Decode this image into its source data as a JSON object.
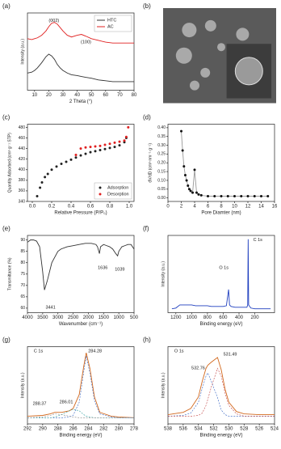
{
  "chart_data": [
    {
      "type": "line",
      "panel": "(a)",
      "xlabel": "2 Theta (°)",
      "ylabel": "Intensity (a.u.)",
      "x": [
        5,
        8,
        10,
        12,
        15,
        18,
        20,
        22,
        24,
        26,
        28,
        30,
        33,
        36,
        40,
        43,
        46,
        50,
        55,
        60,
        65,
        70,
        75,
        80
      ],
      "series": [
        {
          "name": "HTC",
          "color": "#333333",
          "values": [
            3.0,
            3.1,
            3.3,
            3.6,
            4.2,
            4.9,
            5.2,
            5.0,
            4.6,
            4.0,
            3.6,
            3.3,
            3.0,
            2.8,
            2.7,
            2.6,
            2.5,
            2.4,
            2.2,
            2.1,
            2.0,
            2.0,
            2.0,
            2.0
          ]
        },
        {
          "name": "AC",
          "color": "#e02020",
          "values": [
            7.0,
            6.9,
            7.0,
            7.1,
            7.4,
            7.9,
            8.4,
            8.8,
            8.9,
            8.7,
            8.3,
            7.9,
            7.4,
            7.2,
            7.4,
            7.5,
            7.3,
            7.0,
            6.8,
            6.6,
            6.5,
            6.5,
            6.5,
            6.5
          ]
        }
      ],
      "annotations": [
        "(002)",
        "(100)"
      ],
      "xlim": [
        5,
        80
      ],
      "xticks": [
        10,
        20,
        30,
        40,
        50,
        60,
        70,
        80
      ],
      "ylim": [
        1,
        10
      ],
      "legend": "upper right"
    },
    {
      "type": "image",
      "panel": "(b)"
    },
    {
      "type": "scatter",
      "panel": "(c)",
      "xlabel": "Relative Pressure (P/P₀)",
      "ylabel": "Quantity Adsorbed (cm³·g⁻¹ STP)",
      "series": [
        {
          "name": "Adsorption",
          "color": "#222222",
          "x": [
            0.05,
            0.08,
            0.1,
            0.13,
            0.16,
            0.2,
            0.25,
            0.3,
            0.35,
            0.4,
            0.45,
            0.5,
            0.55,
            0.6,
            0.65,
            0.7,
            0.75,
            0.8,
            0.85,
            0.9,
            0.95,
            0.97
          ],
          "values": [
            350,
            366,
            376,
            386,
            392,
            400,
            406,
            411,
            415,
            419,
            423,
            427,
            430,
            433,
            435,
            437,
            439,
            441,
            443,
            446,
            452,
            460
          ]
        },
        {
          "name": "Desorption",
          "color": "#e02020",
          "x": [
            0.99,
            0.97,
            0.95,
            0.9,
            0.85,
            0.8,
            0.75,
            0.7,
            0.65,
            0.6,
            0.55,
            0.5,
            0.45
          ],
          "values": [
            480,
            462,
            455,
            453,
            451,
            449,
            447,
            445,
            444,
            443,
            442,
            440,
            428
          ]
        }
      ],
      "xlim": [
        -0.05,
        1.05
      ],
      "xticks": [
        {
          "value": 0,
          "label": "0.0"
        },
        0.2,
        0.4,
        0.6,
        0.8,
        {
          "value": 1,
          "label": "1.0"
        }
      ],
      "ylim": [
        340,
        486
      ],
      "yticks": [
        340,
        360,
        380,
        400,
        420,
        440,
        460,
        480
      ],
      "legend": "lower right"
    },
    {
      "type": "line",
      "panel": "(d)",
      "markers": true,
      "xlabel": "Pore Diamter (nm)",
      "ylabel": "dV/dD (cm³·nm⁻¹·g⁻¹)",
      "x": [
        2,
        2.2,
        2.4,
        2.6,
        2.8,
        3,
        3.2,
        3.4,
        3.7,
        4,
        4.3,
        4.6,
        5,
        6,
        7,
        8,
        9,
        10,
        11,
        12,
        13,
        14,
        15
      ],
      "series": [
        {
          "color": "#111111",
          "line_color": "#999999",
          "values": [
            0.38,
            0.27,
            0.18,
            0.13,
            0.1,
            0.07,
            0.05,
            0.04,
            0.03,
            0.16,
            0.03,
            0.02,
            0.015,
            0.01,
            0.01,
            0.01,
            0.01,
            0.01,
            0.01,
            0.01,
            0.01,
            0.01,
            0.01
          ]
        }
      ],
      "xlim": [
        0,
        16
      ],
      "xticks": [
        0,
        2,
        4,
        6,
        8,
        10,
        12,
        14,
        16
      ],
      "ylim": [
        -0.02,
        0.42
      ],
      "yticks": [
        {
          "value": 0,
          "label": "0.00"
        },
        0.05,
        {
          "value": 0.1,
          "label": "0.10"
        },
        0.15,
        {
          "value": 0.2,
          "label": "0.20"
        },
        0.25,
        {
          "value": 0.3,
          "label": "0.30"
        },
        0.35,
        {
          "value": 0.4,
          "label": "0.40"
        }
      ]
    },
    {
      "type": "line",
      "panel": "(e)",
      "xlabel": "Wavenumber (cm⁻¹)",
      "ylabel": "Transmittance (%)",
      "x": [
        4000,
        3900,
        3800,
        3700,
        3600,
        3500,
        3441,
        3350,
        3200,
        3000,
        2900,
        2700,
        2500,
        2300,
        2100,
        1900,
        1750,
        1700,
        1636,
        1600,
        1500,
        1400,
        1300,
        1200,
        1100,
        1039,
        1000,
        900,
        800,
        700,
        600,
        500
      ],
      "series": [
        {
          "color": "#333333",
          "values": [
            89,
            90,
            90,
            89.5,
            87,
            76,
            68,
            72,
            80,
            85,
            86,
            87,
            87.5,
            88,
            88.5,
            88.5,
            88,
            87,
            84,
            87,
            88,
            87.5,
            87,
            86,
            84,
            83,
            85,
            87,
            87.5,
            88,
            88,
            86
          ]
        }
      ],
      "annotations": [
        "3441",
        "1636",
        "1039"
      ],
      "xlim": [
        4000,
        500
      ],
      "xticks": [
        4000,
        3500,
        3000,
        2500,
        2000,
        1500,
        1000,
        500
      ],
      "ylim": [
        58,
        92
      ],
      "yticks": [
        60,
        65,
        70,
        75,
        80,
        85,
        90
      ]
    },
    {
      "type": "line",
      "panel": "(f)",
      "xlabel": "Binding energy (eV)",
      "ylabel": "Intensity (a.u.)",
      "x": [
        1250,
        1200,
        1150,
        1100,
        1050,
        1000,
        950,
        900,
        850,
        800,
        750,
        700,
        650,
        600,
        560,
        532,
        520,
        500,
        450,
        400,
        350,
        300,
        290,
        284,
        278,
        250,
        200,
        150,
        100,
        50,
        0
      ],
      "series": [
        {
          "color": "#1f3fbf",
          "values": [
            5,
            6,
            10,
            10,
            10,
            10,
            9,
            9,
            9,
            9,
            8,
            8,
            8,
            8,
            9,
            30,
            10,
            8,
            7,
            7,
            7,
            7,
            10,
            95,
            10,
            6,
            5,
            5,
            5,
            5,
            5
          ]
        }
      ],
      "annotations": [
        "O 1s",
        "C 1s"
      ],
      "xlim": [
        1300,
        -50
      ],
      "xticks": [
        1200,
        1000,
        800,
        600,
        400,
        200
      ],
      "ylim": [
        0,
        100
      ]
    },
    {
      "type": "line",
      "panel": "(g)",
      "xlabel": "Binding energy (eV)",
      "ylabel": "Intensity (a.u.)",
      "x": [
        292,
        290,
        289,
        288.4,
        287.5,
        286.5,
        286,
        285.2,
        284.6,
        284.28,
        283.8,
        283.2,
        282.5,
        281,
        280,
        278
      ],
      "series": [
        {
          "color": "#d2691e",
          "values": [
            10,
            11,
            13,
            15,
            15,
            17,
            20,
            38,
            75,
            92,
            72,
            35,
            15,
            10,
            9,
            8
          ]
        },
        {
          "color": "#3060c0",
          "dashed": true,
          "values": [
            8,
            8,
            8,
            8,
            8,
            9,
            11,
            28,
            68,
            88,
            66,
            30,
            13,
            9,
            8,
            8
          ]
        },
        {
          "color": "#30a0a0",
          "dashed": true,
          "values": [
            8,
            8,
            8,
            9,
            12,
            17,
            19,
            17,
            12,
            10,
            9,
            8,
            8,
            8,
            8,
            8
          ]
        },
        {
          "color": "#888888",
          "dashed": true,
          "values": [
            8,
            9,
            11,
            13,
            12,
            10,
            9,
            8,
            8,
            8,
            8,
            8,
            8,
            8,
            8,
            8
          ]
        }
      ],
      "annotations": [
        "C 1s",
        "284.28",
        "288.37",
        "286.01"
      ],
      "xlim": [
        292,
        278
      ],
      "xticks": [
        292,
        290,
        288,
        286,
        284,
        282,
        280,
        278
      ],
      "ylim": [
        0,
        100
      ]
    },
    {
      "type": "line",
      "panel": "(h)",
      "xlabel": "Binding energy (eV)",
      "ylabel": "Intensity (a.u.)",
      "x": [
        538,
        536,
        535,
        534,
        533.5,
        533,
        532.76,
        532.3,
        531.49,
        531,
        530.5,
        530,
        529,
        528,
        526,
        524
      ],
      "series": [
        {
          "color": "#d2691e",
          "values": [
            12,
            15,
            20,
            35,
            55,
            72,
            76,
            80,
            86,
            70,
            45,
            28,
            16,
            13,
            12,
            12
          ]
        },
        {
          "color": "#3060c0",
          "dashed": true,
          "values": [
            10,
            11,
            14,
            28,
            46,
            62,
            66,
            55,
            34,
            18,
            12,
            10,
            10,
            10,
            10,
            10
          ]
        },
        {
          "color": "#c04040",
          "dashed": true,
          "values": [
            10,
            10,
            10,
            11,
            14,
            24,
            32,
            48,
            72,
            62,
            40,
            24,
            13,
            10,
            10,
            10
          ]
        }
      ],
      "annotations": [
        "O 1s",
        "532.76",
        "531.49"
      ],
      "xlim": [
        538,
        524
      ],
      "xticks": [
        538,
        536,
        534,
        532,
        530,
        528,
        526,
        524
      ],
      "ylim": [
        0,
        100
      ]
    }
  ]
}
